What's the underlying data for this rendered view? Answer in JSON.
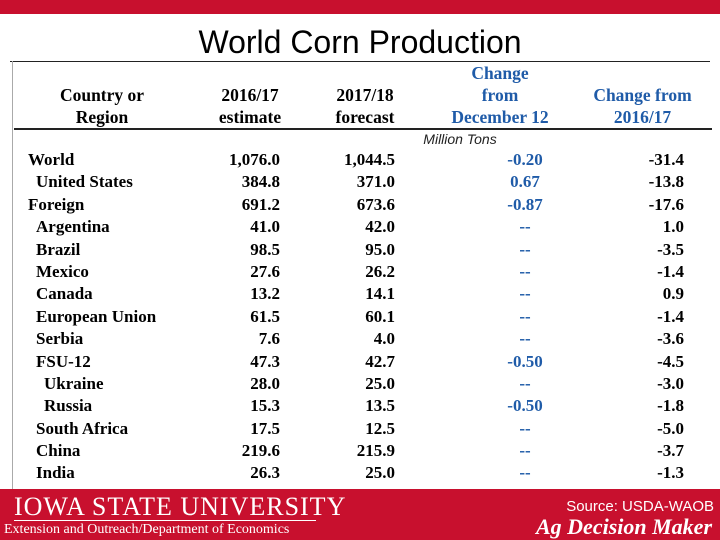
{
  "title": "World Corn Production",
  "headers": {
    "country": [
      "Country or",
      "Region"
    ],
    "col_a": [
      "2016/17",
      "estimate"
    ],
    "col_b": [
      "2017/18",
      "forecast"
    ],
    "col_c": [
      "Change",
      "from",
      "December 12"
    ],
    "col_d": [
      "Change from",
      "2016/17"
    ]
  },
  "units": "Million Tons",
  "rows": [
    {
      "name": "World",
      "indent": 0,
      "a": "1,076.0",
      "b": "1,044.5",
      "c": "-0.20",
      "d": "-31.4"
    },
    {
      "name": "United States",
      "indent": 1,
      "a": "384.8",
      "b": "371.0",
      "c": "0.67",
      "d": "-13.8"
    },
    {
      "name": "Foreign",
      "indent": 0,
      "a": "691.2",
      "b": "673.6",
      "c": "-0.87",
      "d": "-17.6"
    },
    {
      "name": "Argentina",
      "indent": 1,
      "a": "41.0",
      "b": "42.0",
      "c": "--",
      "d": "1.0"
    },
    {
      "name": "Brazil",
      "indent": 1,
      "a": "98.5",
      "b": "95.0",
      "c": "--",
      "d": "-3.5"
    },
    {
      "name": "Mexico",
      "indent": 1,
      "a": "27.6",
      "b": "26.2",
      "c": "--",
      "d": "-1.4"
    },
    {
      "name": "Canada",
      "indent": 1,
      "a": "13.2",
      "b": "14.1",
      "c": "--",
      "d": "0.9"
    },
    {
      "name": "European Union",
      "indent": 1,
      "a": "61.5",
      "b": "60.1",
      "c": "--",
      "d": "-1.4"
    },
    {
      "name": "Serbia",
      "indent": 1,
      "a": "7.6",
      "b": "4.0",
      "c": "--",
      "d": "-3.6"
    },
    {
      "name": "FSU-12",
      "indent": 1,
      "a": "47.3",
      "b": "42.7",
      "c": "-0.50",
      "d": "-4.5"
    },
    {
      "name": "Ukraine",
      "indent": 2,
      "a": "28.0",
      "b": "25.0",
      "c": "--",
      "d": "-3.0"
    },
    {
      "name": "Russia",
      "indent": 2,
      "a": "15.3",
      "b": "13.5",
      "c": "-0.50",
      "d": "-1.8"
    },
    {
      "name": "South Africa",
      "indent": 1,
      "a": "17.5",
      "b": "12.5",
      "c": "--",
      "d": "-5.0"
    },
    {
      "name": "China",
      "indent": 1,
      "a": "219.6",
      "b": "215.9",
      "c": "--",
      "d": "-3.7"
    },
    {
      "name": "India",
      "indent": 1,
      "a": "26.3",
      "b": "25.0",
      "c": "--",
      "d": "-1.3"
    }
  ],
  "footer": {
    "university": "IOWA STATE UNIVERSITY",
    "extension": "Extension and Outreach/Department of Economics",
    "source": "Source: USDA-WAOB",
    "brand": "Ag Decision Maker"
  },
  "colors": {
    "brand_red": "#c8102e",
    "accent_blue": "#1f5ba8"
  }
}
